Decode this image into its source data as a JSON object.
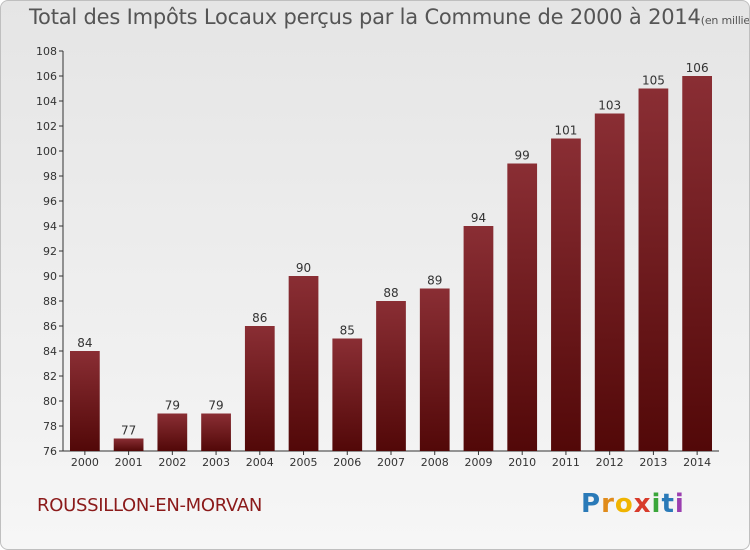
{
  "title": "Total des Impôts Locaux perçus par la Commune de 2000 à 2014",
  "unit": "(en milliers d'€)",
  "commune": "ROUSSILLON-EN-MORVAN",
  "logo": {
    "letters": [
      "P",
      "r",
      "o",
      "x",
      "i",
      "t",
      "i"
    ],
    "colors": [
      "#2a7ab8",
      "#e08b1a",
      "#f0b400",
      "#d83a2a",
      "#3aa63a",
      "#2a7ab8",
      "#9b3fb0"
    ]
  },
  "chart_data": {
    "type": "bar",
    "title": "Total des Impôts Locaux perçus par la Commune de 2000 à 2014",
    "ylabel": "en milliers d'€",
    "xlabel": "",
    "categories": [
      "2000",
      "2001",
      "2002",
      "2003",
      "2004",
      "2005",
      "2006",
      "2007",
      "2008",
      "2009",
      "2010",
      "2011",
      "2012",
      "2013",
      "2014"
    ],
    "values": [
      84,
      77,
      79,
      79,
      86,
      90,
      85,
      88,
      89,
      94,
      99,
      101,
      103,
      105,
      106
    ],
    "ylim": [
      76,
      108
    ],
    "yticks": [
      76,
      78,
      80,
      82,
      84,
      86,
      88,
      90,
      92,
      94,
      96,
      98,
      100,
      102,
      104,
      106,
      108
    ],
    "grid": false,
    "bar_color": "#6e1a1e"
  }
}
